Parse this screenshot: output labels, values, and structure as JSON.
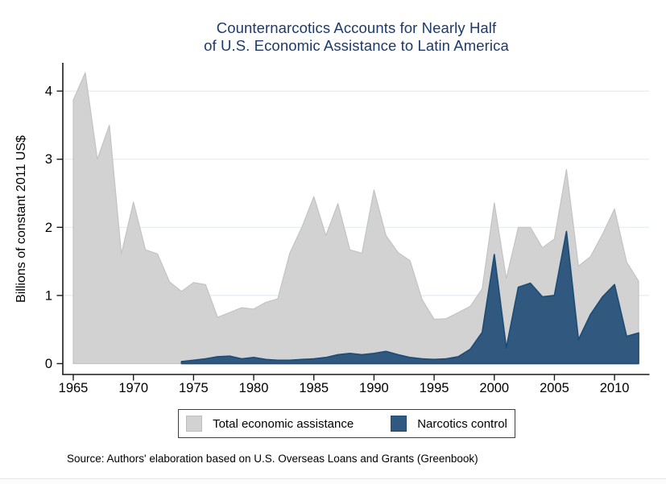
{
  "title": {
    "line1": "Counternarcotics Accounts for Nearly Half",
    "line2": "of U.S. Economic Assistance to Latin America",
    "color": "#1e3a6a"
  },
  "chart_data": {
    "type": "area",
    "title": "Counternarcotics Accounts for Nearly Half of U.S. Economic Assistance to Latin America",
    "xlabel": "",
    "ylabel": "Billions of constant 2011 US$",
    "xlim": [
      1964.1,
      2012.9
    ],
    "ylim": [
      0,
      4.4
    ],
    "xticks": [
      1965,
      1970,
      1975,
      1980,
      1985,
      1990,
      1995,
      2000,
      2005,
      2010
    ],
    "yticks": [
      0,
      1,
      2,
      3,
      4
    ],
    "grid": "horizontal",
    "gridcolor": "#e3ecf4",
    "axiscolor": "#1a1a1a",
    "overlay": "narcotics series drawn on top of total series (not stacked)",
    "x": [
      1965,
      1966,
      1967,
      1968,
      1969,
      1970,
      1971,
      1972,
      1973,
      1974,
      1975,
      1976,
      1977,
      1978,
      1979,
      1980,
      1981,
      1982,
      1983,
      1984,
      1985,
      1986,
      1987,
      1988,
      1989,
      1990,
      1991,
      1992,
      1993,
      1994,
      1995,
      1996,
      1997,
      1998,
      1999,
      2000,
      2001,
      2002,
      2003,
      2004,
      2005,
      2006,
      2007,
      2008,
      2009,
      2010,
      2011,
      2012
    ],
    "series": [
      {
        "name": "Total economic assistance",
        "color": "#d2d2d2",
        "stroke": "#c3c3c3",
        "values": [
          3.87,
          4.27,
          3.0,
          3.5,
          1.61,
          2.37,
          1.67,
          1.61,
          1.2,
          1.06,
          1.19,
          1.16,
          0.68,
          0.75,
          0.82,
          0.8,
          0.9,
          0.95,
          1.62,
          2.0,
          2.45,
          1.88,
          2.35,
          1.67,
          1.62,
          2.55,
          1.88,
          1.63,
          1.51,
          0.94,
          0.65,
          0.66,
          0.75,
          0.84,
          1.1,
          2.36,
          1.25,
          2.0,
          2.0,
          1.7,
          1.83,
          2.85,
          1.43,
          1.57,
          1.9,
          2.27,
          1.49,
          1.21
        ]
      },
      {
        "name": "Narcotics control",
        "color": "#31597f",
        "stroke": "#1d4d77",
        "values": [
          null,
          null,
          null,
          null,
          null,
          null,
          null,
          null,
          null,
          0.03,
          0.05,
          0.07,
          0.1,
          0.11,
          0.07,
          0.09,
          0.06,
          0.05,
          0.05,
          0.06,
          0.07,
          0.09,
          0.13,
          0.15,
          0.13,
          0.15,
          0.18,
          0.13,
          0.09,
          0.07,
          0.06,
          0.07,
          0.1,
          0.21,
          0.46,
          1.6,
          0.23,
          1.12,
          1.18,
          0.98,
          1.0,
          1.94,
          0.35,
          0.72,
          0.98,
          1.16,
          0.4,
          0.45
        ]
      }
    ],
    "legend_position": "bottom"
  },
  "legend": {
    "items": [
      {
        "label": "Total economic assistance",
        "color": "#d2d2d2",
        "border": "#bdbdbd"
      },
      {
        "label": "Narcotics control",
        "color": "#31597f",
        "border": "#1d4d77"
      }
    ]
  },
  "source_note": "Source: Authors' elaboration based on U.S. Overseas Loans and Grants (Greenbook)"
}
